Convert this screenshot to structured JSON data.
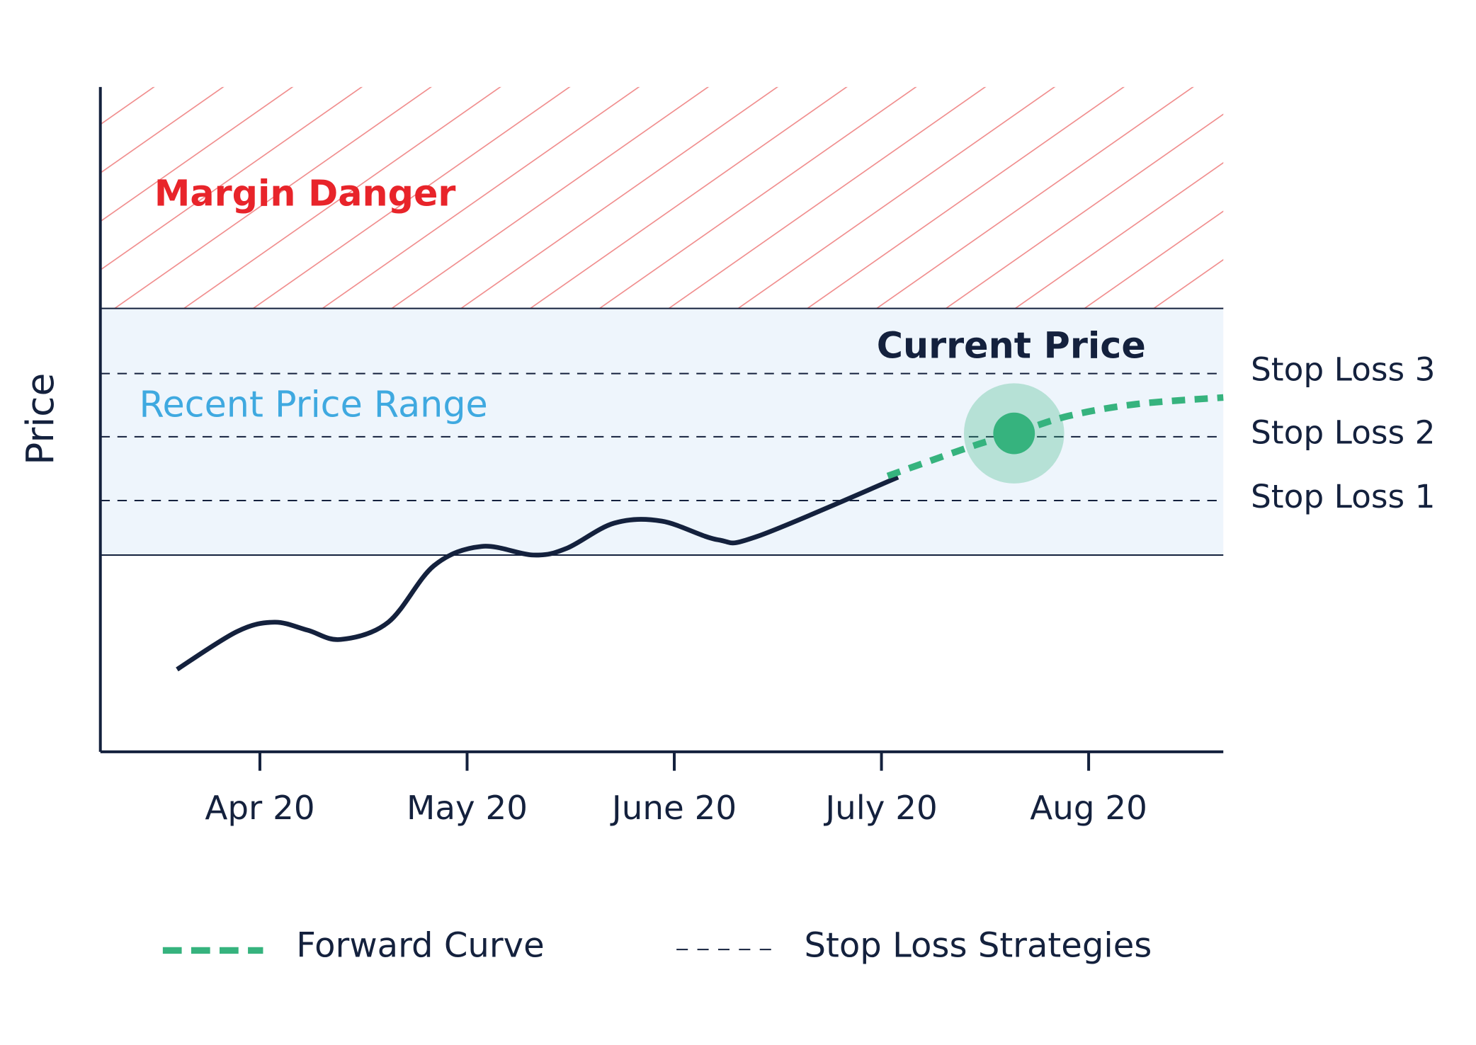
{
  "chart_data": {
    "type": "line",
    "y_label": "Price",
    "xlim": [
      -0.77,
      4.65
    ],
    "xticks": [
      {
        "value": 0,
        "label": "Apr 20"
      },
      {
        "value": 1,
        "label": "May 20"
      },
      {
        "value": 2,
        "label": "June 20"
      },
      {
        "value": 3,
        "label": "July 20"
      },
      {
        "value": 4,
        "label": "Aug 20"
      }
    ],
    "ylim": [
      0,
      100
    ],
    "zones": [
      {
        "name": "Margin Danger",
        "range": [
          66.7,
          100
        ],
        "color": "#e8242a",
        "hatch_color": "#f08a8a"
      },
      {
        "name": "Recent Price Range",
        "range": [
          29.6,
          66.7
        ],
        "color": "#3fa9e0",
        "fill": "#eef5fc"
      }
    ],
    "stop_losses": {
      "name": "Stop Loss Strategies",
      "color": "#14213d",
      "levels": [
        {
          "label": "Stop Loss 3",
          "value": 56.9
        },
        {
          "label": "Stop Loss 2",
          "value": 47.4
        },
        {
          "label": "Stop Loss 1",
          "value": 37.8
        }
      ]
    },
    "series": [
      {
        "color": "#14213d",
        "x": [
          -0.4,
          -0.11,
          0.07,
          0.23,
          0.39,
          0.62,
          0.84,
          1.07,
          1.32,
          1.48,
          1.71,
          1.94,
          2.21,
          2.4,
          3.08
        ],
        "values": [
          12.4,
          18.1,
          19.5,
          18.3,
          16.9,
          19.5,
          28.0,
          30.9,
          29.6,
          30.6,
          34.4,
          34.7,
          31.9,
          32.4,
          41.3
        ]
      },
      {
        "name": "Forward Curve",
        "color": "#36b37e",
        "dashed": true,
        "x": [
          3.03,
          3.22,
          3.45,
          3.64,
          3.9,
          4.23,
          4.65
        ],
        "values": [
          41.5,
          43.6,
          46.1,
          47.9,
          50.5,
          52.3,
          53.3
        ]
      }
    ],
    "annotations": [
      {
        "text": "Current Price",
        "x": 3.64,
        "y": 47.9,
        "color": "#36b37e"
      }
    ]
  }
}
